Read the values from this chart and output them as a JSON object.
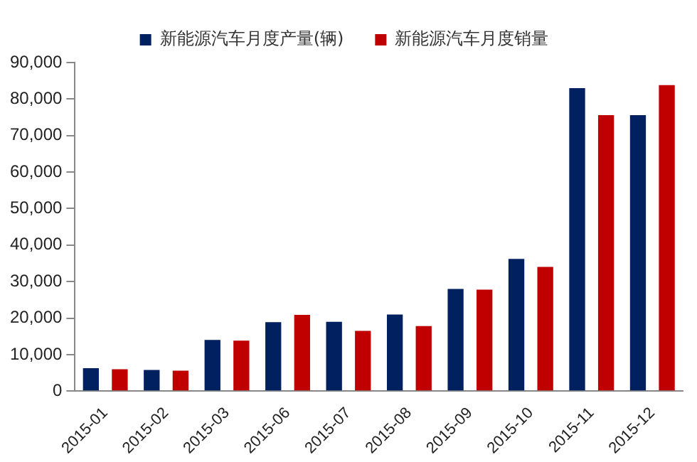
{
  "chart_data": {
    "type": "bar",
    "categories": [
      "2015-01",
      "2015-02",
      "2015-03",
      "2015-06",
      "2015-07",
      "2015-08",
      "2015-09",
      "2015-10",
      "2015-11",
      "2015-12"
    ],
    "series": [
      {
        "name": "新能源汽车月度产量(辆)",
        "color": "#002060",
        "values": [
          6300,
          5800,
          14000,
          18900,
          19000,
          21000,
          28000,
          36200,
          83000,
          75600
        ]
      },
      {
        "name": "新能源汽车月度销量",
        "color": "#c00000",
        "values": [
          6000,
          5600,
          13800,
          20900,
          16500,
          17800,
          27800,
          34000,
          75600,
          83800
        ]
      }
    ],
    "ylim": [
      0,
      90000
    ],
    "yticks": [
      {
        "value": 0,
        "label": "0"
      },
      {
        "value": 10000,
        "label": "10,000"
      },
      {
        "value": 20000,
        "label": "20,000"
      },
      {
        "value": 30000,
        "label": "30,000"
      },
      {
        "value": 40000,
        "label": "40,000"
      },
      {
        "value": 50000,
        "label": "50,000"
      },
      {
        "value": 60000,
        "label": "60,000"
      },
      {
        "value": 70000,
        "label": "70,000"
      },
      {
        "value": 80000,
        "label": "80,000"
      },
      {
        "value": 90000,
        "label": "90,000"
      }
    ],
    "grid": false,
    "legend": "top"
  }
}
